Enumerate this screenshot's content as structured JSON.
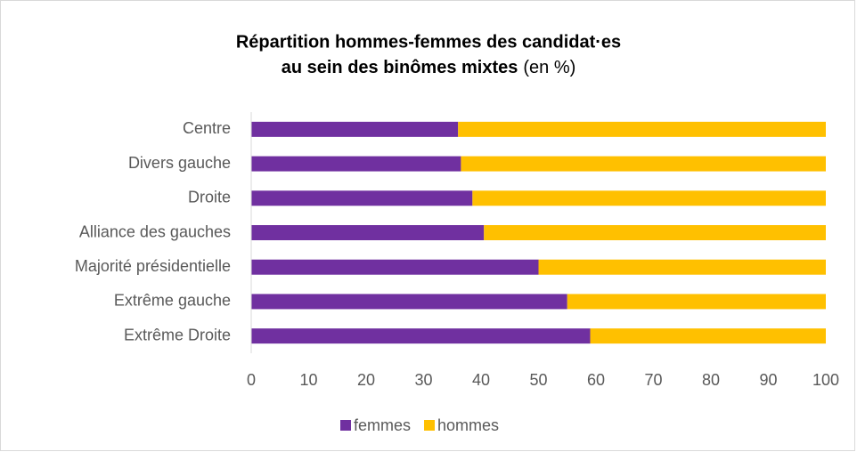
{
  "chart_data": {
    "type": "stacked_bar_horizontal",
    "title": [
      "Répartition hommes-femmes des candidat·es",
      "au sein des binômes mixtes"
    ],
    "subtitle": "(en %)",
    "categories": [
      "Centre",
      "Divers gauche",
      "Droite",
      "Alliance des gauches",
      "Majorité présidentielle",
      "Extrême gauche",
      "Extrême Droite"
    ],
    "series": [
      {
        "name": "femmes",
        "color": "#7030a0",
        "values": [
          36,
          36.5,
          38.5,
          40.5,
          50,
          55,
          59
        ]
      },
      {
        "name": "hommes",
        "color": "#ffc000",
        "values": [
          64,
          63.5,
          61.5,
          59.5,
          50,
          45,
          41
        ]
      }
    ],
    "xlim": [
      0,
      100
    ],
    "xticks": [
      0,
      10,
      20,
      30,
      40,
      50,
      60,
      70,
      80,
      90,
      100
    ],
    "grid": false,
    "legend": "bottom"
  }
}
